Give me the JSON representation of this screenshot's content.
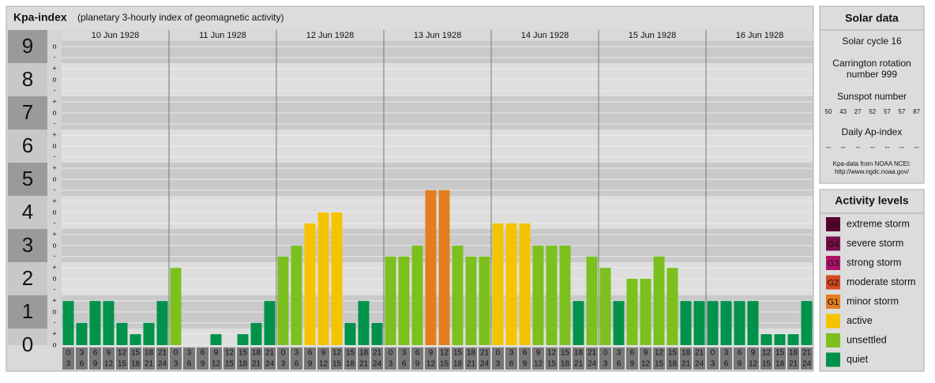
{
  "chart_data": {
    "type": "bar",
    "title": "Kpa-index",
    "subtitle": "(planetary 3-hourly index of geomagnetic activity)",
    "days": [
      "10 Jun 1928",
      "11 Jun 1928",
      "12 Jun 1928",
      "13 Jun 1928",
      "14 Jun 1928",
      "15 Jun 1928",
      "16 Jun 1928"
    ],
    "interval_labels": [
      [
        "0",
        "3"
      ],
      [
        "3",
        "6"
      ],
      [
        "6",
        "9"
      ],
      [
        "9",
        "12"
      ],
      [
        "12",
        "15"
      ],
      [
        "15",
        "18"
      ],
      [
        "18",
        "21"
      ],
      [
        "21",
        "24"
      ]
    ],
    "values": [
      1.33,
      0.67,
      1.33,
      1.33,
      0.67,
      0.33,
      0.67,
      1.33,
      2.33,
      0,
      0,
      0.33,
      0,
      0.33,
      0.67,
      1.33,
      2.67,
      3,
      3.67,
      4,
      4,
      0.67,
      1.33,
      0.67,
      2.67,
      2.67,
      3,
      4.67,
      4.67,
      3,
      2.67,
      2.67,
      3.67,
      3.67,
      3.67,
      3,
      3,
      3,
      1.33,
      2.67,
      2.33,
      1.33,
      2,
      2,
      2.67,
      2.33,
      1.33,
      1.33,
      1.33,
      1.33,
      1.33,
      1.33,
      0.33,
      0.33,
      0.33,
      1.33
    ],
    "colors": [
      "#00924b",
      "#00924b",
      "#00924b",
      "#00924b",
      "#00924b",
      "#00924b",
      "#00924b",
      "#00924b",
      "#7cc01e",
      "#00924b",
      "#00924b",
      "#00924b",
      "#00924b",
      "#00924b",
      "#00924b",
      "#00924b",
      "#7cc01e",
      "#7cc01e",
      "#f5c400",
      "#f5c400",
      "#f5c400",
      "#00924b",
      "#00924b",
      "#00924b",
      "#7cc01e",
      "#7cc01e",
      "#7cc01e",
      "#e57d1e",
      "#e57d1e",
      "#7cc01e",
      "#7cc01e",
      "#7cc01e",
      "#f5c400",
      "#f5c400",
      "#f5c400",
      "#7cc01e",
      "#7cc01e",
      "#7cc01e",
      "#00924b",
      "#7cc01e",
      "#7cc01e",
      "#00924b",
      "#7cc01e",
      "#7cc01e",
      "#7cc01e",
      "#7cc01e",
      "#00924b",
      "#00924b",
      "#00924b",
      "#00924b",
      "#00924b",
      "#00924b",
      "#00924b",
      "#00924b",
      "#00924b",
      "#00924b"
    ],
    "ylim": [
      0,
      9
    ],
    "yticks": [
      0,
      1,
      2,
      3,
      4,
      5,
      6,
      7,
      8,
      9
    ],
    "minor_ticks": [
      {
        "value": 0,
        "label": "o"
      },
      {
        "value": 0.33,
        "label": "+"
      },
      {
        "value": 0.67,
        "label": "-"
      },
      {
        "value": 1,
        "label": "o"
      },
      {
        "value": 1.33,
        "label": "+"
      },
      {
        "value": 1.67,
        "label": "-"
      },
      {
        "value": 2,
        "label": "o"
      },
      {
        "value": 2.33,
        "label": "+"
      },
      {
        "value": 2.67,
        "label": "-"
      },
      {
        "value": 3,
        "label": "o"
      },
      {
        "value": 3.33,
        "label": "+"
      },
      {
        "value": 3.67,
        "label": "-"
      },
      {
        "value": 4,
        "label": "o"
      },
      {
        "value": 4.33,
        "label": "+"
      },
      {
        "value": 4.67,
        "label": "-"
      },
      {
        "value": 5,
        "label": "o"
      },
      {
        "value": 5.33,
        "label": "+"
      },
      {
        "value": 5.67,
        "label": "-"
      },
      {
        "value": 6,
        "label": "o"
      },
      {
        "value": 6.33,
        "label": "+"
      },
      {
        "value": 6.67,
        "label": "-"
      },
      {
        "value": 7,
        "label": "o"
      },
      {
        "value": 7.33,
        "label": "+"
      },
      {
        "value": 7.67,
        "label": "-"
      },
      {
        "value": 8,
        "label": "o"
      },
      {
        "value": 8.33,
        "label": "+"
      },
      {
        "value": 8.67,
        "label": "-"
      },
      {
        "value": 9,
        "label": "o"
      }
    ],
    "grid": true
  },
  "solar_data": {
    "title": "Solar data",
    "cycle": "Solar cycle 16",
    "carrington": [
      "Carrington rotation",
      "number 999"
    ],
    "sunspot_title": "Sunspot number",
    "sunspots": [
      50,
      43,
      27,
      52,
      57,
      57,
      87
    ],
    "ap_title": "Daily Ap-index",
    "ap_values": [
      "--",
      "--",
      "--",
      "--",
      "--",
      "--",
      "--"
    ],
    "source": [
      "Kpa-data from NOAA NCEI:",
      "http://www.ngdc.noaa.gov/"
    ]
  },
  "activity_levels": {
    "title": "Activity levels",
    "items": [
      {
        "badge": "G5",
        "label": "extreme storm",
        "color": "#5a0030"
      },
      {
        "badge": "G4",
        "label": "severe storm",
        "color": "#7a0e4a"
      },
      {
        "badge": "G3",
        "label": "strong storm",
        "color": "#b0126a"
      },
      {
        "badge": "G2",
        "label": "moderate storm",
        "color": "#d64a1e"
      },
      {
        "badge": "G1",
        "label": "minor storm",
        "color": "#e57d1e"
      },
      {
        "label": "active",
        "color": "#f5c400"
      },
      {
        "label": "unsettled",
        "color": "#7cc01e"
      },
      {
        "label": "quiet",
        "color": "#00924b"
      }
    ]
  }
}
